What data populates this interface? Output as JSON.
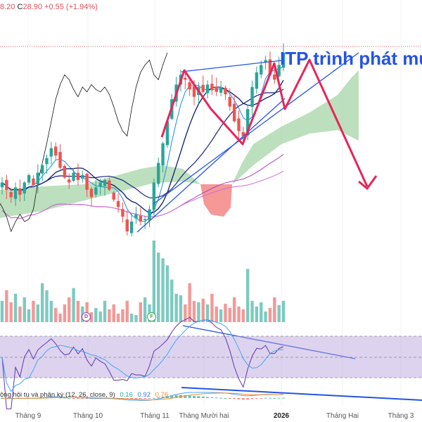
{
  "header": {
    "prefix": "8.20",
    "close_label": "C",
    "close": "28.90",
    "change": "+0.55 (+1.94%)"
  },
  "annotation": "ITP trình phát mu",
  "markers": [
    {
      "label": "D",
      "color": "#8e3fa6"
    },
    {
      "label": "F",
      "color": "#43a047"
    }
  ],
  "macd": {
    "label": "ộng hội tụ và phân kỳ (12, 26, close, 9)",
    "v1": "0.16",
    "v2": "0.92",
    "v3": "0.76"
  },
  "x_axis": [
    "Tháng 9",
    "Tháng 10",
    "Tháng 11",
    "Tháng Mười hai",
    "2026",
    "Tháng Hai",
    "Tháng 3"
  ],
  "colors": {
    "up": "#26a69a",
    "down": "#ef5350",
    "cloud": "#a5d6a7",
    "rsi_band": "#b39ddb",
    "trend": "#2453e8",
    "zigzag": "#e8245a"
  },
  "chart_data": {
    "type": "candlestick",
    "title": "",
    "last_close": 28.9,
    "closes": [
      23.6,
      23.3,
      23.0,
      23.4,
      23.1,
      23.6,
      23.9,
      23.5,
      24.0,
      24.3,
      24.6,
      25.0,
      24.7,
      24.2,
      23.8,
      23.6,
      24.0,
      23.7,
      23.9,
      23.3,
      23.0,
      23.4,
      23.6,
      23.7,
      23.3,
      22.9,
      22.6,
      22.2,
      21.6,
      22.0,
      22.3,
      22.0,
      22.1,
      22.5,
      23.6,
      24.4,
      25.2,
      26.1,
      27.0,
      27.6,
      28.0,
      27.8,
      27.4,
      27.1,
      27.5,
      27.3,
      27.6,
      27.4,
      27.3,
      27.5,
      27.2,
      26.7,
      26.1,
      25.7,
      25.5,
      26.6,
      27.5,
      28.1,
      28.4,
      28.6,
      28.0,
      27.8,
      28.4,
      28.9
    ],
    "volumes": [
      30,
      45,
      28,
      40,
      22,
      35,
      18,
      30,
      25,
      55,
      45,
      30,
      20,
      12,
      25,
      35,
      48,
      30,
      22,
      28,
      14,
      20,
      15,
      30,
      18,
      25,
      12,
      18,
      30,
      12,
      10,
      28,
      35,
      25,
      115,
      98,
      90,
      80,
      60,
      40,
      38,
      25,
      55,
      30,
      28,
      33,
      25,
      40,
      22,
      18,
      26,
      20,
      35,
      22,
      18,
      75,
      30,
      22,
      28,
      15,
      20,
      35,
      24,
      30
    ],
    "rsi_levels": [
      70,
      50,
      30
    ],
    "macd_params": [
      12,
      26,
      9
    ]
  }
}
